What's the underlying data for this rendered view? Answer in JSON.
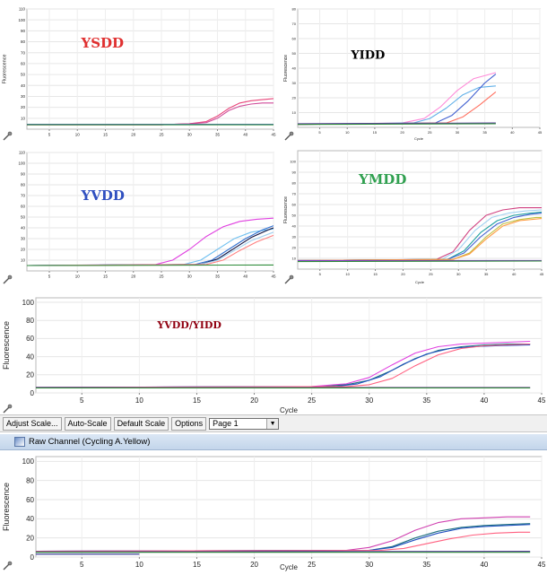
{
  "toolbar": {
    "adjust_scale": "Adjust Scale...",
    "auto_scale": "Auto-Scale",
    "default_scale": "Default Scale",
    "options": "Options",
    "page_select": "Page 1"
  },
  "channel_title": "Raw Channel (Cycling A.Yellow)",
  "chart_data": [
    {
      "type": "line",
      "annotation": "YSDD",
      "annotation_color": "#e03030",
      "ylabel": "Fluorescence",
      "xlim": [
        1,
        45
      ],
      "ylim": [
        0,
        110
      ],
      "x_ticks": [
        5,
        10,
        15,
        20,
        25,
        30,
        35,
        40,
        45
      ],
      "y_ticks": [
        10,
        20,
        30,
        40,
        50,
        60,
        70,
        80,
        90,
        100,
        110
      ],
      "series": [
        {
          "color": "#e8457a",
          "x": [
            1,
            25,
            30,
            33,
            35,
            37,
            39,
            41,
            43,
            45
          ],
          "y": [
            4,
            4,
            5,
            7,
            12,
            19,
            24,
            26,
            27,
            28
          ]
        },
        {
          "color": "#d04c9a",
          "x": [
            1,
            25,
            30,
            33,
            35,
            37,
            39,
            41,
            43,
            45
          ],
          "y": [
            4,
            4,
            5,
            6,
            10,
            17,
            21,
            23,
            24,
            24
          ]
        },
        {
          "color": "#5a6fd0",
          "x": [
            1,
            45
          ],
          "y": [
            4.5,
            4.5
          ]
        },
        {
          "color": "#2e8b3a",
          "x": [
            1,
            45
          ],
          "y": [
            4,
            4
          ]
        }
      ]
    },
    {
      "type": "line",
      "annotation": "YIDD",
      "annotation_color": "#000000",
      "xlabel": "Cycle",
      "ylabel": "Fluorescence",
      "xlim": [
        1,
        45
      ],
      "ylim": [
        0,
        80
      ],
      "x_ticks": [
        5,
        10,
        15,
        20,
        25,
        30,
        35,
        40,
        45
      ],
      "y_ticks": [
        10,
        20,
        30,
        40,
        50,
        60,
        70,
        80
      ],
      "series": [
        {
          "color": "#ff8ad8",
          "x": [
            1,
            20,
            24,
            27,
            30,
            33,
            36,
            37
          ],
          "y": [
            2,
            3,
            6,
            14,
            25,
            33,
            36,
            37
          ]
        },
        {
          "color": "#60b0e8",
          "x": [
            1,
            22,
            25,
            28,
            31,
            34,
            37
          ],
          "y": [
            2,
            3,
            6,
            13,
            22,
            27,
            28
          ]
        },
        {
          "color": "#4060d0",
          "x": [
            1,
            26,
            29,
            32,
            35,
            37
          ],
          "y": [
            2,
            3,
            8,
            18,
            30,
            36
          ]
        },
        {
          "color": "#ff7060",
          "x": [
            1,
            28,
            31,
            34,
            37
          ],
          "y": [
            2,
            3,
            7,
            15,
            24
          ]
        },
        {
          "color": "#6040a0",
          "x": [
            1,
            37
          ],
          "y": [
            2.5,
            3
          ]
        },
        {
          "color": "#2e8b3a",
          "x": [
            1,
            37
          ],
          "y": [
            2,
            2.5
          ]
        }
      ]
    },
    {
      "type": "line",
      "annotation": "YVDD",
      "annotation_color": "#3050c0",
      "xlim": [
        1,
        45
      ],
      "ylim": [
        0,
        110
      ],
      "x_ticks": [
        5,
        10,
        15,
        20,
        25,
        30,
        35,
        40,
        45
      ],
      "y_ticks": [
        10,
        20,
        30,
        40,
        50,
        60,
        70,
        80,
        90,
        100,
        110
      ],
      "series": [
        {
          "color": "#e040e0",
          "x": [
            1,
            24,
            27,
            30,
            33,
            36,
            39,
            42,
            45
          ],
          "y": [
            5,
            6,
            10,
            20,
            32,
            41,
            46,
            48,
            49
          ]
        },
        {
          "color": "#70c0f0",
          "x": [
            1,
            29,
            32,
            35,
            38,
            41,
            45
          ],
          "y": [
            5,
            6,
            10,
            20,
            30,
            36,
            39
          ]
        },
        {
          "color": "#3070d0",
          "x": [
            1,
            31,
            34,
            37,
            40,
            43,
            45
          ],
          "y": [
            5,
            6,
            10,
            20,
            30,
            38,
            42
          ]
        },
        {
          "color": "#101040",
          "x": [
            1,
            32,
            35,
            38,
            41,
            44,
            45
          ],
          "y": [
            5,
            6,
            11,
            21,
            31,
            38,
            40
          ]
        },
        {
          "color": "#a0d0f0",
          "x": [
            1,
            32,
            35,
            38,
            41,
            45
          ],
          "y": [
            5,
            6,
            10,
            19,
            28,
            36
          ]
        },
        {
          "color": "#ff8080",
          "x": [
            1,
            33,
            36,
            39,
            42,
            45
          ],
          "y": [
            5,
            6,
            10,
            19,
            27,
            33
          ]
        },
        {
          "color": "#2e8b3a",
          "x": [
            1,
            45
          ],
          "y": [
            5,
            5.5
          ]
        }
      ]
    },
    {
      "type": "line",
      "annotation": "YMDD",
      "annotation_color": "#30a050",
      "xlabel": "Cycle",
      "ylabel": "Fluorescence",
      "xlim": [
        1,
        45
      ],
      "ylim": [
        0,
        110
      ],
      "x_ticks": [
        5,
        10,
        15,
        20,
        25,
        30,
        35,
        40,
        45
      ],
      "y_ticks": [
        10,
        20,
        30,
        40,
        50,
        60,
        70,
        80,
        90,
        100
      ],
      "series": [
        {
          "color": "#d04080",
          "x": [
            1,
            26,
            29,
            32,
            35,
            38,
            41,
            44,
            45
          ],
          "y": [
            8,
            9,
            16,
            36,
            50,
            55,
            57,
            57,
            57
          ]
        },
        {
          "color": "#a0d0f0",
          "x": [
            1,
            27,
            30,
            33,
            36,
            39,
            42,
            45
          ],
          "y": [
            8,
            9,
            18,
            36,
            48,
            52,
            54,
            55
          ]
        },
        {
          "color": "#20a0a0",
          "x": [
            1,
            28,
            31,
            34,
            37,
            40,
            43,
            45
          ],
          "y": [
            8,
            9,
            17,
            34,
            45,
            50,
            52,
            53
          ]
        },
        {
          "color": "#4060d0",
          "x": [
            1,
            28,
            31,
            34,
            37,
            40,
            43,
            45
          ],
          "y": [
            8,
            9,
            15,
            30,
            42,
            48,
            51,
            52
          ]
        },
        {
          "color": "#c0c040",
          "x": [
            1,
            29,
            32,
            35,
            38,
            41,
            44,
            45
          ],
          "y": [
            8,
            9,
            15,
            30,
            42,
            46,
            48,
            48
          ]
        },
        {
          "color": "#ff9a40",
          "x": [
            1,
            29,
            32,
            35,
            38,
            41,
            45
          ],
          "y": [
            8,
            9,
            14,
            28,
            40,
            45,
            47
          ]
        },
        {
          "color": "#8040c0",
          "x": [
            1,
            45
          ],
          "y": [
            8,
            8
          ]
        },
        {
          "color": "#2e8b3a",
          "x": [
            1,
            45
          ],
          "y": [
            7,
            7.5
          ]
        }
      ]
    },
    {
      "type": "line",
      "annotation": "YVDD/YIDD",
      "annotation_color": "#900010",
      "xlabel": "Cycle",
      "ylabel": "Fluorescence",
      "xlim": [
        1,
        45
      ],
      "ylim": [
        0,
        105
      ],
      "x_ticks": [
        5,
        10,
        15,
        20,
        25,
        30,
        35,
        40,
        45
      ],
      "y_ticks": [
        0,
        20,
        40,
        60,
        80,
        100
      ],
      "series": [
        {
          "color": "#e040e0",
          "x": [
            1,
            25,
            28,
            30,
            32,
            34,
            36,
            38,
            40,
            42,
            44
          ],
          "y": [
            6,
            7,
            10,
            17,
            31,
            44,
            51,
            54,
            55,
            56,
            57
          ]
        },
        {
          "color": "#1f7080",
          "x": [
            1,
            26,
            28,
            30,
            32,
            34,
            36,
            38,
            40,
            42,
            44
          ],
          "y": [
            6,
            7,
            9,
            14,
            25,
            38,
            47,
            51,
            53,
            54,
            54
          ]
        },
        {
          "color": "#2050c0",
          "x": [
            1,
            27,
            29,
            31,
            33,
            35,
            37,
            39,
            41,
            44
          ],
          "y": [
            6,
            7,
            10,
            18,
            32,
            43,
            49,
            51,
            52,
            53
          ]
        },
        {
          "color": "#ff6080",
          "x": [
            1,
            28,
            30,
            32,
            34,
            36,
            38,
            40,
            42,
            44
          ],
          "y": [
            6,
            7,
            9,
            16,
            30,
            42,
            49,
            52,
            53,
            54
          ]
        },
        {
          "color": "#8040a0",
          "x": [
            1,
            44
          ],
          "y": [
            6,
            6
          ]
        },
        {
          "color": "#2e8b3a",
          "x": [
            1,
            44
          ],
          "y": [
            5.5,
            5.5
          ]
        }
      ]
    },
    {
      "type": "line",
      "xlabel": "Cycle",
      "ylabel": "Fluorescence",
      "xlim": [
        1,
        45
      ],
      "ylim": [
        0,
        105
      ],
      "x_ticks": [
        5,
        10,
        15,
        20,
        25,
        30,
        35,
        40,
        45
      ],
      "y_ticks": [
        0,
        20,
        40,
        60,
        80,
        100
      ],
      "series": [
        {
          "color": "#d040b0",
          "x": [
            1,
            28,
            30,
            32,
            34,
            36,
            38,
            40,
            42,
            44
          ],
          "y": [
            6,
            7,
            10,
            17,
            28,
            36,
            40,
            41,
            42,
            42
          ]
        },
        {
          "color": "#1f7080",
          "x": [
            1,
            30,
            32,
            34,
            36,
            38,
            40,
            42,
            44
          ],
          "y": [
            6,
            7,
            11,
            20,
            27,
            31,
            33,
            34,
            35
          ]
        },
        {
          "color": "#2050c0",
          "x": [
            1,
            30,
            32,
            34,
            36,
            38,
            40,
            42,
            44
          ],
          "y": [
            6,
            7,
            10,
            18,
            25,
            30,
            32,
            33,
            34
          ]
        },
        {
          "color": "#ff6080",
          "x": [
            1,
            31,
            33,
            35,
            37,
            39,
            41,
            43,
            44
          ],
          "y": [
            6,
            7,
            9,
            14,
            19,
            23,
            25,
            26,
            26
          ]
        },
        {
          "color": "#6040a0",
          "x": [
            1,
            44
          ],
          "y": [
            5.5,
            6
          ]
        },
        {
          "color": "#303090",
          "x": [
            1,
            10
          ],
          "y": [
            3,
            3
          ]
        },
        {
          "color": "#2e8b3a",
          "x": [
            1,
            44
          ],
          "y": [
            5,
            5
          ]
        }
      ]
    }
  ]
}
